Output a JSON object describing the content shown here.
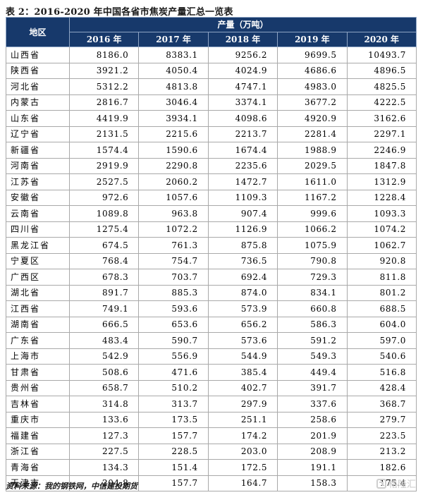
{
  "title": "表 2：2016-2020 年中国各省市焦炭产量汇总一览表",
  "table": {
    "region_header": "地区",
    "group_header": "产量（万吨）",
    "years": [
      "2016 年",
      "2017 年",
      "2018 年",
      "2019 年",
      "2020 年"
    ],
    "rows": [
      {
        "region": "山西省",
        "values": [
          "8186.0",
          "8383.1",
          "9256.2",
          "9699.5",
          "10493.7"
        ]
      },
      {
        "region": "陕西省",
        "values": [
          "3921.2",
          "4050.4",
          "4024.9",
          "4686.6",
          "4896.5"
        ]
      },
      {
        "region": "河北省",
        "values": [
          "5312.2",
          "4813.8",
          "4747.1",
          "4983.0",
          "4825.5"
        ]
      },
      {
        "region": "内蒙古",
        "values": [
          "2816.7",
          "3046.4",
          "3374.1",
          "3677.2",
          "4222.5"
        ]
      },
      {
        "region": "山东省",
        "values": [
          "4419.9",
          "3934.1",
          "4098.6",
          "4920.9",
          "3162.6"
        ]
      },
      {
        "region": "辽宁省",
        "values": [
          "2131.5",
          "2215.6",
          "2213.7",
          "2281.4",
          "2297.1"
        ]
      },
      {
        "region": "新疆省",
        "values": [
          "1574.4",
          "1590.6",
          "1674.4",
          "1988.9",
          "2246.9"
        ]
      },
      {
        "region": "河南省",
        "values": [
          "2919.9",
          "2290.8",
          "2235.6",
          "2029.5",
          "1847.8"
        ]
      },
      {
        "region": "江苏省",
        "values": [
          "2527.5",
          "2060.2",
          "1472.7",
          "1611.0",
          "1312.9"
        ]
      },
      {
        "region": "安徽省",
        "values": [
          "972.6",
          "1057.6",
          "1109.3",
          "1167.2",
          "1228.4"
        ]
      },
      {
        "region": "云南省",
        "values": [
          "1089.8",
          "963.8",
          "907.4",
          "999.6",
          "1093.3"
        ]
      },
      {
        "region": "四川省",
        "values": [
          "1275.4",
          "1072.2",
          "1126.9",
          "1066.2",
          "1074.2"
        ]
      },
      {
        "region": "黑龙江省",
        "values": [
          "674.5",
          "761.3",
          "875.8",
          "1075.9",
          "1062.7"
        ]
      },
      {
        "region": "宁夏区",
        "values": [
          "768.4",
          "754.7",
          "736.5",
          "790.8",
          "920.8"
        ]
      },
      {
        "region": "广西区",
        "values": [
          "678.3",
          "703.7",
          "692.4",
          "729.3",
          "811.8"
        ]
      },
      {
        "region": "湖北省",
        "values": [
          "891.7",
          "885.3",
          "874.0",
          "834.1",
          "801.2"
        ]
      },
      {
        "region": "江西省",
        "values": [
          "749.1",
          "593.6",
          "573.9",
          "660.8",
          "688.5"
        ]
      },
      {
        "region": "湖南省",
        "values": [
          "666.5",
          "653.6",
          "656.2",
          "586.3",
          "604.0"
        ]
      },
      {
        "region": "广东省",
        "values": [
          "483.4",
          "590.7",
          "573.6",
          "591.2",
          "597.0"
        ]
      },
      {
        "region": "上海市",
        "values": [
          "542.9",
          "556.9",
          "544.9",
          "549.3",
          "540.6"
        ]
      },
      {
        "region": "甘肃省",
        "values": [
          "508.6",
          "471.6",
          "385.4",
          "449.4",
          "516.8"
        ]
      },
      {
        "region": "贵州省",
        "values": [
          "658.7",
          "510.2",
          "402.7",
          "391.7",
          "428.4"
        ]
      },
      {
        "region": "吉林省",
        "values": [
          "314.8",
          "313.7",
          "297.9",
          "337.6",
          "368.7"
        ]
      },
      {
        "region": "重庆市",
        "values": [
          "133.6",
          "173.5",
          "251.1",
          "258.6",
          "279.7"
        ]
      },
      {
        "region": "福建省",
        "values": [
          "127.3",
          "157.7",
          "174.2",
          "201.9",
          "223.5"
        ]
      },
      {
        "region": "浙江省",
        "values": [
          "227.5",
          "228.5",
          "203.0",
          "208.9",
          "213.2"
        ]
      },
      {
        "region": "青海省",
        "values": [
          "134.3",
          "151.4",
          "172.5",
          "191.1",
          "182.6"
        ]
      },
      {
        "region": "天津市",
        "values": [
          "204.8",
          "157.7",
          "164.7",
          "158.3",
          "175.4"
        ]
      }
    ]
  },
  "footer": "资料来源：我的钢铁网，中信建投期货",
  "watermark": {
    "text": "格隆汇",
    "icon": "gelonghui-logo-icon"
  }
}
